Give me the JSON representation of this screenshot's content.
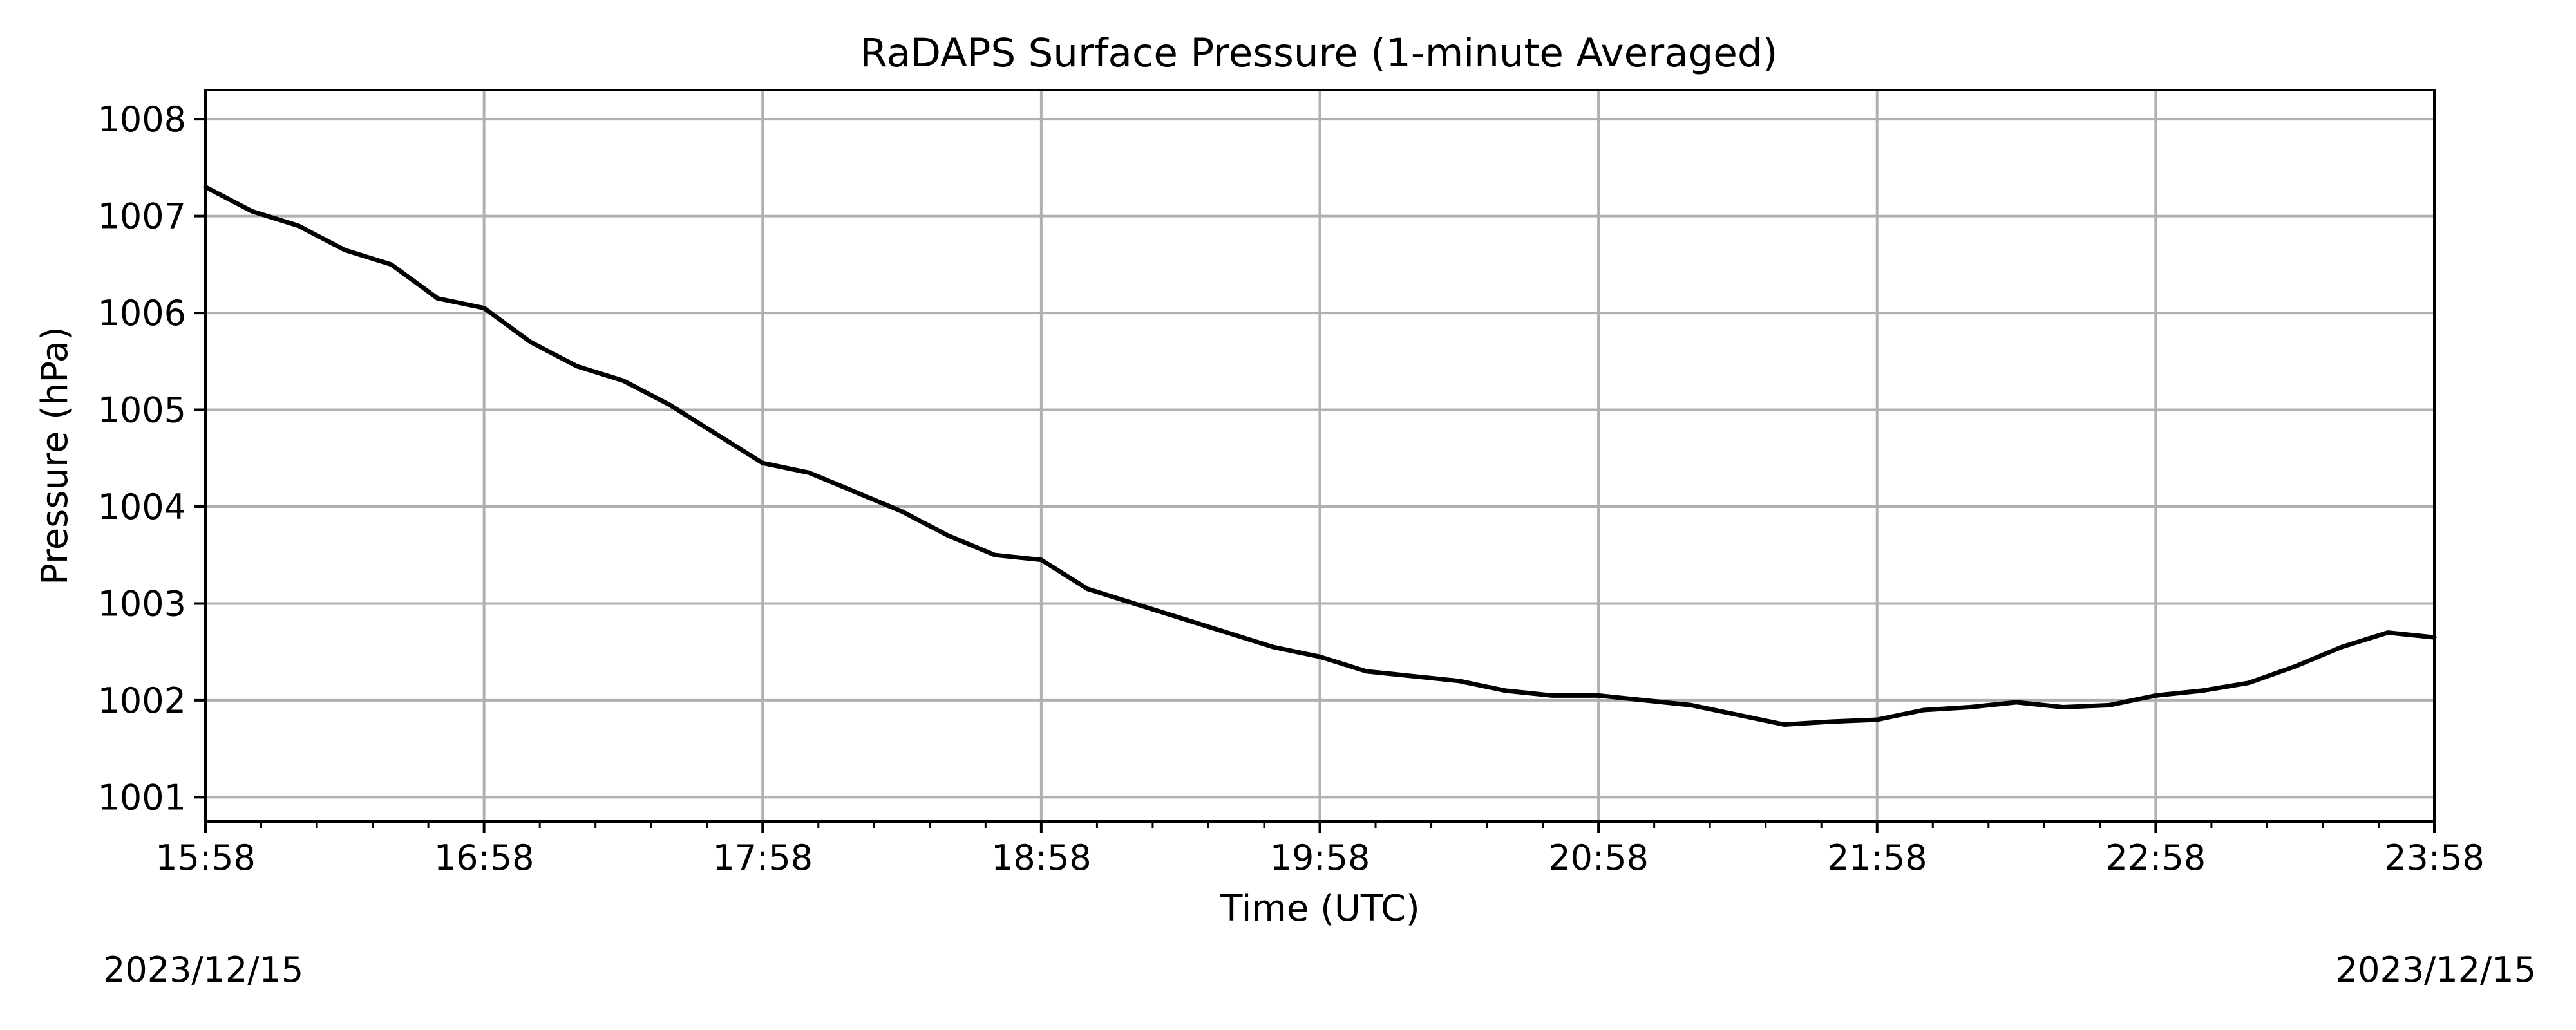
{
  "chart_data": {
    "type": "line",
    "title": "RaDAPS Surface Pressure (1-minute Averaged)",
    "xlabel": "Time (UTC)",
    "ylabel": "Pressure (hPa)",
    "x_tick_labels": [
      "15:58",
      "16:58",
      "17:58",
      "18:58",
      "19:58",
      "20:58",
      "21:58",
      "22:58",
      "23:58"
    ],
    "y_tick_labels": [
      "1001",
      "1002",
      "1003",
      "1004",
      "1005",
      "1006",
      "1007",
      "1008"
    ],
    "xlim": [
      "15:58",
      "23:58"
    ],
    "ylim": [
      1000.75,
      1008.3
    ],
    "grid": true,
    "date_start": "2023/12/15",
    "date_end": "2023/12/15",
    "series": [
      {
        "color": "#000000",
        "x": [
          "15:58",
          "16:08",
          "16:18",
          "16:28",
          "16:38",
          "16:48",
          "16:58",
          "17:08",
          "17:18",
          "17:28",
          "17:38",
          "17:48",
          "17:58",
          "18:08",
          "18:18",
          "18:28",
          "18:38",
          "18:48",
          "18:58",
          "19:08",
          "19:18",
          "19:28",
          "19:38",
          "19:48",
          "19:58",
          "20:08",
          "20:18",
          "20:28",
          "20:38",
          "20:48",
          "20:58",
          "21:08",
          "21:18",
          "21:28",
          "21:38",
          "21:48",
          "21:58",
          "22:08",
          "22:18",
          "22:28",
          "22:38",
          "22:48",
          "22:58",
          "23:08",
          "23:18",
          "23:28",
          "23:38",
          "23:48",
          "23:58"
        ],
        "y": [
          1007.3,
          1007.05,
          1006.9,
          1006.65,
          1006.5,
          1006.15,
          1006.05,
          1005.7,
          1005.45,
          1005.3,
          1005.05,
          1004.75,
          1004.45,
          1004.35,
          1004.15,
          1003.95,
          1003.7,
          1003.5,
          1003.45,
          1003.15,
          1003.0,
          1002.85,
          1002.7,
          1002.55,
          1002.45,
          1002.3,
          1002.25,
          1002.2,
          1002.1,
          1002.05,
          1002.05,
          1002.0,
          1001.95,
          1001.85,
          1001.75,
          1001.78,
          1001.8,
          1001.9,
          1001.93,
          1001.98,
          1001.93,
          1001.95,
          1002.05,
          1002.1,
          1002.18,
          1002.35,
          1002.55,
          1002.7,
          1002.65
        ]
      }
    ]
  }
}
